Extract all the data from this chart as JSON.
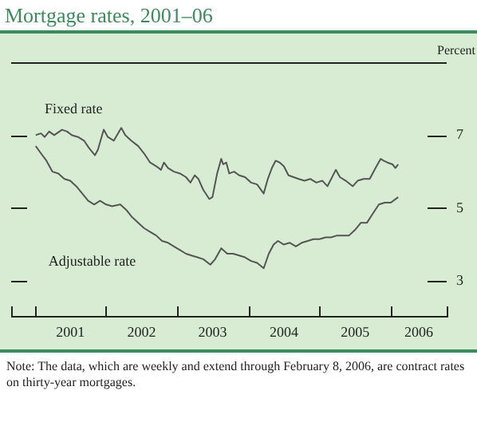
{
  "chart_data": {
    "type": "line",
    "title": "Mortgage rates, 2001–06",
    "ylabel": "Percent",
    "annotations": [
      "Note: The data, which are weekly and extend through February 8, 2006, are contract rates on thirty-year mortgages."
    ],
    "xlim": [
      "2000-09-01",
      "2006-10-15"
    ],
    "xticks": [
      {
        "value": "2000-09-01",
        "label": null
      },
      {
        "value": "2001-01-01",
        "label": null
      },
      {
        "value": "2002-01-01",
        "label": null
      },
      {
        "value": "2003-01-01",
        "label": null
      },
      {
        "value": "2004-01-01",
        "label": null
      },
      {
        "value": "2005-01-01",
        "label": null
      },
      {
        "value": "2006-01-01",
        "label": null
      },
      {
        "value": "2006-10-15",
        "label": null
      },
      {
        "value": "2001-07-02",
        "label": "2001"
      },
      {
        "value": "2002-07-02",
        "label": "2002"
      },
      {
        "value": "2003-07-02",
        "label": "2003"
      },
      {
        "value": "2004-07-02",
        "label": "2004"
      },
      {
        "value": "2005-07-02",
        "label": "2005"
      },
      {
        "value": "2006-05-25",
        "label": "2006"
      }
    ],
    "ylim": [
      2,
      9
    ],
    "yticks": [
      3,
      5,
      7
    ],
    "grid": false,
    "legend": false,
    "marker": "none",
    "line_style": "solid",
    "series": [
      {
        "name": "Fixed rate",
        "color": "#555555",
        "x": [
          "2001-01-05",
          "2001-02-01",
          "2001-02-20",
          "2001-03-15",
          "2001-04-10",
          "2001-05-20",
          "2001-06-15",
          "2001-07-10",
          "2001-08-10",
          "2001-09-10",
          "2001-10-05",
          "2001-11-05",
          "2001-11-20",
          "2001-12-20",
          "2002-01-10",
          "2002-02-10",
          "2002-03-20",
          "2002-04-10",
          "2002-05-10",
          "2002-06-15",
          "2002-07-15",
          "2002-08-15",
          "2002-09-15",
          "2002-10-10",
          "2002-10-25",
          "2002-11-15",
          "2002-12-15",
          "2003-01-15",
          "2003-02-15",
          "2003-03-10",
          "2003-04-01",
          "2003-04-20",
          "2003-05-15",
          "2003-06-15",
          "2003-07-01",
          "2003-07-25",
          "2003-08-15",
          "2003-08-25",
          "2003-09-10",
          "2003-09-25",
          "2003-10-20",
          "2003-11-15",
          "2003-12-15",
          "2004-01-15",
          "2004-02-15",
          "2004-03-20",
          "2004-04-10",
          "2004-05-01",
          "2004-05-20",
          "2004-06-10",
          "2004-07-01",
          "2004-07-25",
          "2004-08-20",
          "2004-09-15",
          "2004-10-15",
          "2004-11-15",
          "2004-12-15",
          "2005-01-15",
          "2005-02-10",
          "2005-03-25",
          "2005-04-15",
          "2005-05-15",
          "2005-06-20",
          "2005-07-15",
          "2005-08-15",
          "2005-09-15",
          "2005-10-15",
          "2005-11-10",
          "2005-11-25",
          "2005-12-15",
          "2006-01-10",
          "2006-01-25",
          "2006-02-08"
        ],
        "values": [
          7.0,
          7.05,
          6.95,
          7.1,
          7.0,
          7.15,
          7.1,
          7.0,
          6.95,
          6.85,
          6.65,
          6.45,
          6.6,
          7.15,
          6.95,
          6.85,
          7.2,
          7.0,
          6.85,
          6.7,
          6.5,
          6.25,
          6.15,
          6.05,
          6.25,
          6.1,
          6.0,
          5.95,
          5.85,
          5.7,
          5.9,
          5.8,
          5.5,
          5.25,
          5.3,
          5.95,
          6.35,
          6.2,
          6.25,
          5.95,
          6.0,
          5.9,
          5.85,
          5.7,
          5.65,
          5.4,
          5.8,
          6.1,
          6.3,
          6.25,
          6.15,
          5.9,
          5.85,
          5.8,
          5.75,
          5.8,
          5.7,
          5.75,
          5.6,
          6.05,
          5.85,
          5.75,
          5.6,
          5.75,
          5.8,
          5.8,
          6.1,
          6.35,
          6.3,
          6.25,
          6.2,
          6.1,
          6.2
        ]
      },
      {
        "name": "Adjustable rate",
        "color": "#555555",
        "x": [
          "2001-01-05",
          "2001-02-01",
          "2001-03-01",
          "2001-04-01",
          "2001-05-01",
          "2001-06-01",
          "2001-07-01",
          "2001-08-01",
          "2001-09-01",
          "2001-10-01",
          "2001-11-01",
          "2001-12-01",
          "2002-01-01",
          "2002-02-01",
          "2002-03-15",
          "2002-04-15",
          "2002-05-15",
          "2002-06-15",
          "2002-07-15",
          "2002-08-15",
          "2002-09-15",
          "2002-10-15",
          "2002-11-15",
          "2002-12-15",
          "2003-01-15",
          "2003-02-15",
          "2003-03-15",
          "2003-04-15",
          "2003-05-15",
          "2003-06-20",
          "2003-07-15",
          "2003-08-15",
          "2003-09-15",
          "2003-10-15",
          "2003-11-15",
          "2003-12-15",
          "2004-01-15",
          "2004-02-15",
          "2004-03-20",
          "2004-04-15",
          "2004-05-10",
          "2004-06-01",
          "2004-07-01",
          "2004-08-01",
          "2004-09-01",
          "2004-10-01",
          "2004-11-01",
          "2004-12-01",
          "2005-01-01",
          "2005-02-01",
          "2005-03-01",
          "2005-04-01",
          "2005-05-01",
          "2005-06-01",
          "2005-07-01",
          "2005-08-01",
          "2005-09-01",
          "2005-10-01",
          "2005-11-01",
          "2005-12-01",
          "2006-01-01",
          "2006-02-08"
        ],
        "values": [
          6.7,
          6.5,
          6.3,
          6.0,
          5.95,
          5.8,
          5.75,
          5.6,
          5.4,
          5.2,
          5.1,
          5.2,
          5.1,
          5.05,
          5.1,
          4.95,
          4.75,
          4.6,
          4.45,
          4.35,
          4.25,
          4.1,
          4.05,
          3.95,
          3.85,
          3.75,
          3.7,
          3.65,
          3.6,
          3.45,
          3.6,
          3.9,
          3.75,
          3.75,
          3.7,
          3.65,
          3.55,
          3.5,
          3.35,
          3.75,
          4.0,
          4.1,
          4.0,
          4.05,
          3.95,
          4.05,
          4.1,
          4.15,
          4.15,
          4.2,
          4.2,
          4.25,
          4.25,
          4.25,
          4.4,
          4.6,
          4.6,
          4.85,
          5.1,
          5.15,
          5.15,
          5.3
        ]
      }
    ]
  }
}
